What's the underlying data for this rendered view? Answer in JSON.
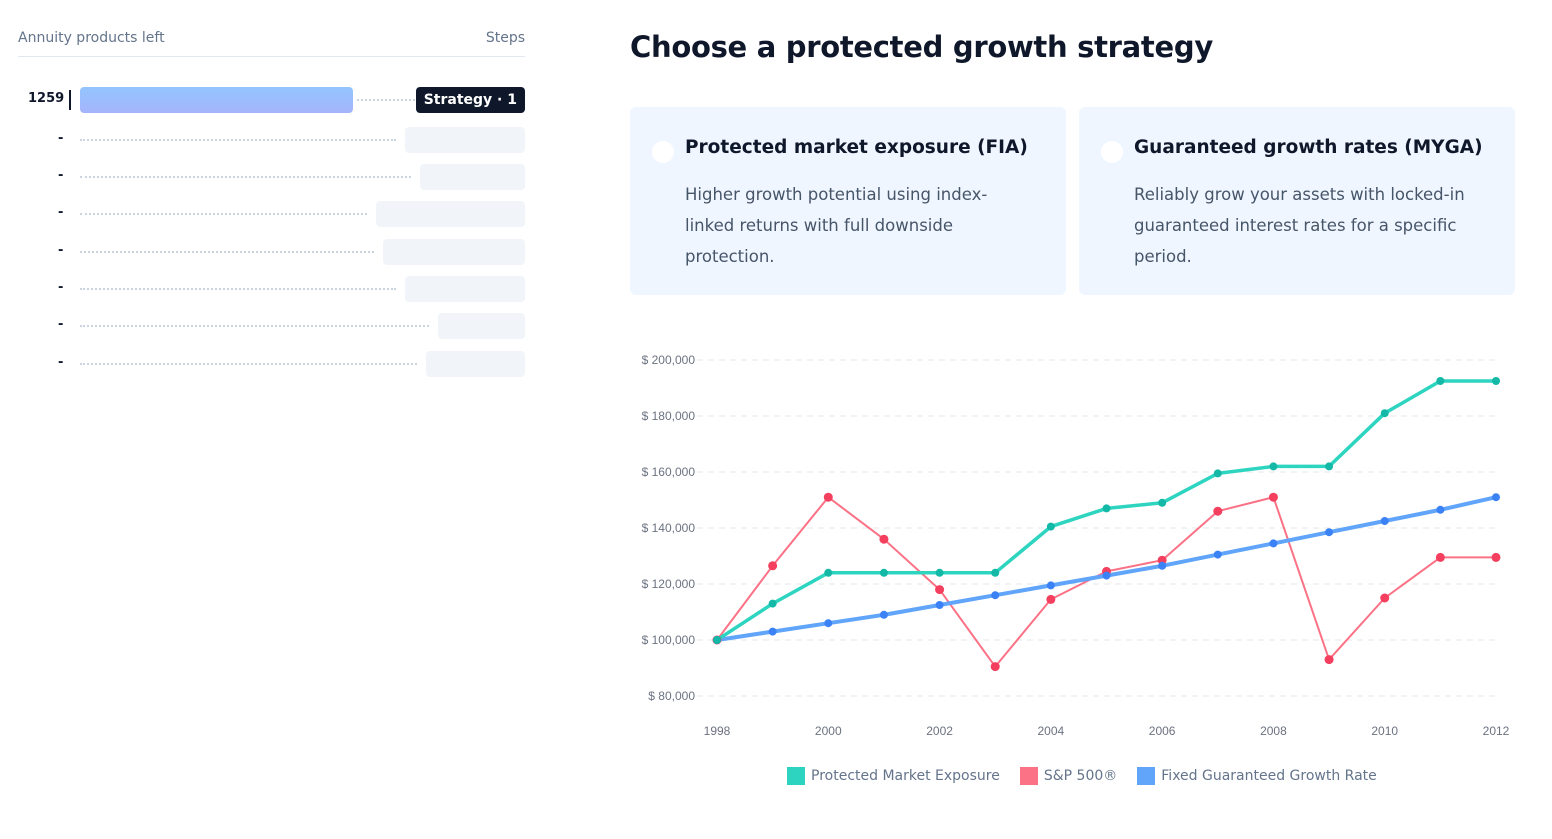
{
  "sidebar": {
    "header_left": "Annuity products left",
    "header_right": "Steps",
    "rows": [
      {
        "count": "1259",
        "step": "Strategy · 1",
        "active": true,
        "fill": 0.78
      },
      {
        "count": "-",
        "step": "",
        "active": false
      },
      {
        "count": "-",
        "step": "",
        "active": false
      },
      {
        "count": "-",
        "step": "",
        "active": false
      },
      {
        "count": "-",
        "step": "",
        "active": false
      },
      {
        "count": "-",
        "step": "",
        "active": false
      },
      {
        "count": "-",
        "step": "",
        "active": false
      },
      {
        "count": "-",
        "step": "",
        "active": false
      }
    ]
  },
  "main": {
    "title": "Choose a protected growth strategy",
    "options": [
      {
        "title": "Protected market exposure (FIA)",
        "description": "Higher growth potential using index-linked returns with full downside protection."
      },
      {
        "title": "Guaranteed growth rates (MYGA)",
        "description": "Reliably grow your assets with locked-in guaranteed interest rates for a specific period."
      }
    ]
  },
  "chart_data": {
    "type": "line",
    "title": "",
    "xlabel": "",
    "ylabel": "",
    "x": [
      1998,
      1999,
      2000,
      2001,
      2002,
      2003,
      2004,
      2005,
      2006,
      2007,
      2008,
      2009,
      2010,
      2011,
      2012
    ],
    "x_ticks": [
      "1998",
      "2000",
      "2002",
      "2004",
      "2006",
      "2008",
      "2010",
      "2012"
    ],
    "y_ticks": [
      "$ 80,000",
      "$ 100,000",
      "$ 120,000",
      "$ 140,000",
      "$ 160,000",
      "$ 180,000",
      "$ 200,000"
    ],
    "ylim": [
      80000,
      200000
    ],
    "grid": true,
    "legend_position": "bottom",
    "series": [
      {
        "name": "Protected Market Exposure",
        "color": "#2dd4bf",
        "marker": "#14b8a6",
        "values": [
          100000,
          113000,
          124000,
          124000,
          124000,
          124000,
          140500,
          147000,
          149000,
          159500,
          162000,
          162000,
          181000,
          192500,
          192500
        ]
      },
      {
        "name": "S&P 500®",
        "color": "#fb7185",
        "marker": "#f43f5e",
        "values": [
          100000,
          126500,
          151000,
          136000,
          118000,
          90500,
          114500,
          124500,
          128500,
          146000,
          151000,
          93000,
          115000,
          129500,
          129500
        ]
      },
      {
        "name": "Fixed Guaranteed Growth Rate",
        "color": "#60a5fa",
        "marker": "#3b82f6",
        "values": [
          100000,
          103000,
          106000,
          109000,
          112500,
          116000,
          119500,
          123000,
          126500,
          130500,
          134500,
          138500,
          142500,
          146500,
          151000
        ]
      }
    ]
  }
}
